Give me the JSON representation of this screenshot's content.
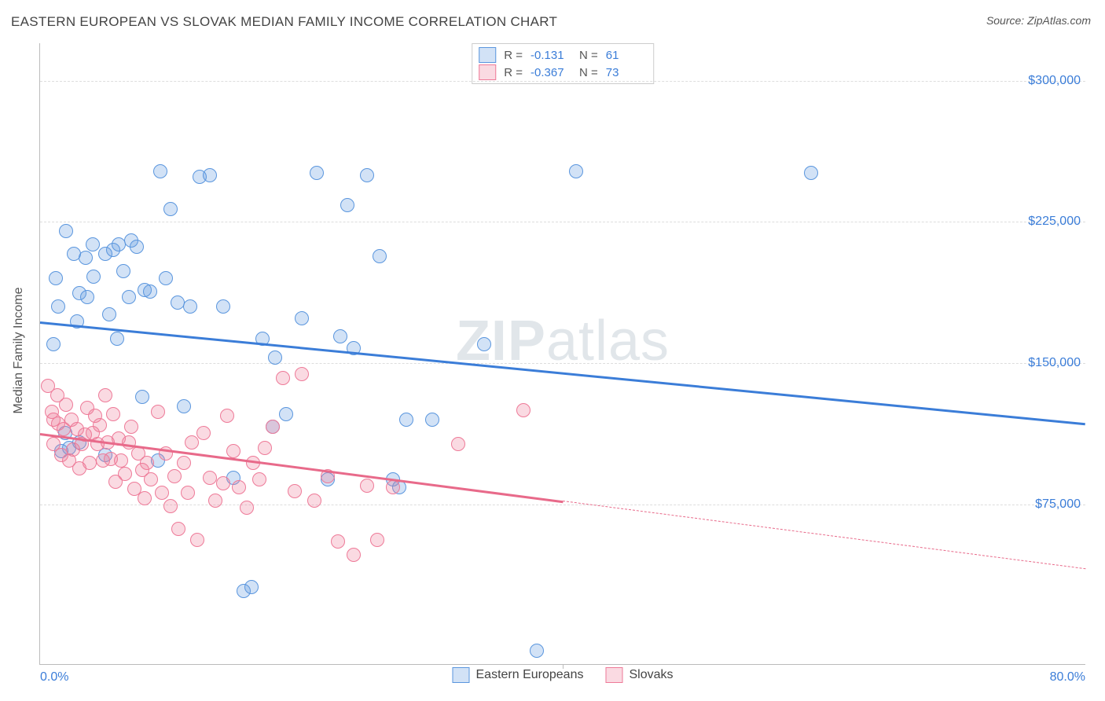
{
  "title": "EASTERN EUROPEAN VS SLOVAK MEDIAN FAMILY INCOME CORRELATION CHART",
  "source_label": "Source: ZipAtlas.com",
  "watermark": "ZIPatlas",
  "ylabel": "Median Family Income",
  "chart": {
    "type": "scatter",
    "xlim": [
      0,
      80
    ],
    "x_unit": "%",
    "xtick_labels": {
      "min": "0.0%",
      "max": "80.0%"
    },
    "ylim": [
      -10000,
      320000
    ],
    "ytick_step": 75000,
    "yticks": [
      75000,
      150000,
      225000,
      300000
    ],
    "ytick_labels": [
      "$75,000",
      "$150,000",
      "$225,000",
      "$300,000"
    ],
    "background_color": "#ffffff",
    "grid_color": "#dddddd",
    "axis_color": "#bbbbbb",
    "marker_radius": 9,
    "marker_border_width": 1.2,
    "marker_fill_opacity": 0.28,
    "trend_line_width": 3
  },
  "series": [
    {
      "key": "eastern_europeans",
      "label": "Eastern Europeans",
      "color": "#3b7dd8",
      "fill": "rgba(94,150,222,0.28)",
      "stroke": "#5a96de",
      "R": "-0.131",
      "N": "61",
      "trend": {
        "y_at_xmin": 172000,
        "y_at_xmax": 118000,
        "solid_to_x": 80
      },
      "points": [
        [
          1.0,
          160000
        ],
        [
          1.2,
          195000
        ],
        [
          1.4,
          180000
        ],
        [
          1.6,
          103000
        ],
        [
          1.9,
          113000
        ],
        [
          2.0,
          220000
        ],
        [
          2.6,
          208000
        ],
        [
          2.8,
          172000
        ],
        [
          3.0,
          187000
        ],
        [
          3.0,
          108000
        ],
        [
          3.5,
          206000
        ],
        [
          3.6,
          185000
        ],
        [
          4.0,
          213000
        ],
        [
          4.1,
          196000
        ],
        [
          5.0,
          208000
        ],
        [
          5.3,
          176000
        ],
        [
          5.6,
          210000
        ],
        [
          5.9,
          163000
        ],
        [
          6.0,
          213000
        ],
        [
          6.4,
          199000
        ],
        [
          6.8,
          185000
        ],
        [
          7.0,
          215000
        ],
        [
          7.4,
          212000
        ],
        [
          7.8,
          132000
        ],
        [
          8.0,
          189000
        ],
        [
          8.4,
          188000
        ],
        [
          9.0,
          98000
        ],
        [
          9.2,
          252000
        ],
        [
          9.6,
          195000
        ],
        [
          10.0,
          232000
        ],
        [
          10.5,
          182000
        ],
        [
          11.0,
          127000
        ],
        [
          11.5,
          180000
        ],
        [
          12.2,
          249000
        ],
        [
          13.0,
          250000
        ],
        [
          14.0,
          180000
        ],
        [
          14.8,
          89000
        ],
        [
          15.6,
          29000
        ],
        [
          16.2,
          31000
        ],
        [
          17.0,
          163000
        ],
        [
          18.0,
          153000
        ],
        [
          18.8,
          123000
        ],
        [
          20.0,
          174000
        ],
        [
          21.2,
          251000
        ],
        [
          22.0,
          88000
        ],
        [
          23.0,
          164000
        ],
        [
          23.5,
          234000
        ],
        [
          24.0,
          158000
        ],
        [
          25.0,
          250000
        ],
        [
          26.0,
          207000
        ],
        [
          27.0,
          88000
        ],
        [
          28.0,
          120000
        ],
        [
          30.0,
          120000
        ],
        [
          34.0,
          160000
        ],
        [
          38.0,
          -3000
        ],
        [
          41.0,
          252000
        ],
        [
          59.0,
          251000
        ],
        [
          27.5,
          84000
        ],
        [
          17.8,
          116000
        ],
        [
          5.0,
          101000
        ],
        [
          2.2,
          105000
        ]
      ]
    },
    {
      "key": "slovaks",
      "label": "Slovaks",
      "color": "#e86a8a",
      "fill": "rgba(238,122,152,0.28)",
      "stroke": "#ee7a98",
      "R": "-0.367",
      "N": "73",
      "trend": {
        "y_at_xmin": 113000,
        "y_at_xmax": 41000,
        "solid_to_x": 40
      },
      "points": [
        [
          0.6,
          138000
        ],
        [
          0.9,
          124000
        ],
        [
          1.0,
          120000
        ],
        [
          1.0,
          107000
        ],
        [
          1.3,
          133000
        ],
        [
          1.4,
          118000
        ],
        [
          1.6,
          101000
        ],
        [
          1.8,
          115000
        ],
        [
          2.0,
          128000
        ],
        [
          2.2,
          98000
        ],
        [
          2.4,
          120000
        ],
        [
          2.5,
          104000
        ],
        [
          2.8,
          115000
        ],
        [
          3.0,
          94000
        ],
        [
          3.2,
          107000
        ],
        [
          3.4,
          112000
        ],
        [
          3.6,
          126000
        ],
        [
          3.8,
          97000
        ],
        [
          4.0,
          113000
        ],
        [
          4.2,
          122000
        ],
        [
          4.4,
          107000
        ],
        [
          4.6,
          117000
        ],
        [
          4.8,
          98000
        ],
        [
          5.0,
          133000
        ],
        [
          5.2,
          108000
        ],
        [
          5.4,
          99000
        ],
        [
          5.6,
          123000
        ],
        [
          5.8,
          87000
        ],
        [
          6.0,
          110000
        ],
        [
          6.2,
          98000
        ],
        [
          6.5,
          91000
        ],
        [
          6.8,
          108000
        ],
        [
          7.0,
          116000
        ],
        [
          7.2,
          83000
        ],
        [
          7.5,
          102000
        ],
        [
          7.8,
          93000
        ],
        [
          8.0,
          78000
        ],
        [
          8.2,
          97000
        ],
        [
          8.5,
          88000
        ],
        [
          9.0,
          124000
        ],
        [
          9.3,
          81000
        ],
        [
          9.6,
          102000
        ],
        [
          10.0,
          74000
        ],
        [
          10.3,
          90000
        ],
        [
          10.6,
          62000
        ],
        [
          11.0,
          97000
        ],
        [
          11.3,
          81000
        ],
        [
          11.6,
          108000
        ],
        [
          12.0,
          56000
        ],
        [
          12.5,
          113000
        ],
        [
          13.0,
          89000
        ],
        [
          13.4,
          77000
        ],
        [
          14.0,
          86000
        ],
        [
          14.3,
          122000
        ],
        [
          14.8,
          103000
        ],
        [
          15.2,
          84000
        ],
        [
          15.8,
          73000
        ],
        [
          16.3,
          97000
        ],
        [
          16.8,
          88000
        ],
        [
          17.2,
          105000
        ],
        [
          17.8,
          116000
        ],
        [
          18.6,
          142000
        ],
        [
          19.5,
          82000
        ],
        [
          20.0,
          144000
        ],
        [
          21.0,
          77000
        ],
        [
          22.0,
          90000
        ],
        [
          22.8,
          55000
        ],
        [
          24.0,
          48000
        ],
        [
          25.0,
          85000
        ],
        [
          25.8,
          56000
        ],
        [
          27.0,
          84000
        ],
        [
          32.0,
          107000
        ],
        [
          37.0,
          125000
        ]
      ]
    }
  ],
  "legend": {
    "bottom_items": [
      "Eastern Europeans",
      "Slovaks"
    ]
  }
}
